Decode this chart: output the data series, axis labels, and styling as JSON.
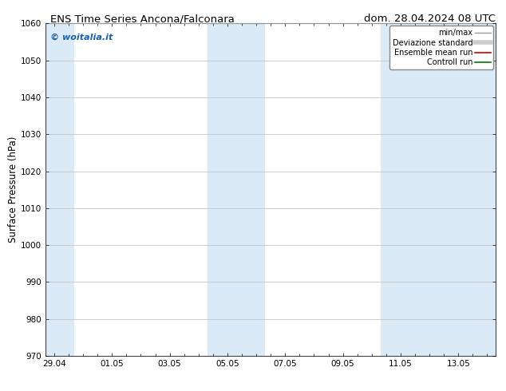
{
  "title_left": "ENS Time Series Ancona/Falconara",
  "title_right": "dom. 28.04.2024 08 UTC",
  "ylabel": "Surface Pressure (hPa)",
  "ylim": [
    970,
    1060
  ],
  "yticks": [
    970,
    980,
    990,
    1000,
    1010,
    1020,
    1030,
    1040,
    1050,
    1060
  ],
  "xtick_labels": [
    "29.04",
    "01.05",
    "03.05",
    "05.05",
    "07.05",
    "09.05",
    "11.05",
    "13.05"
  ],
  "xtick_positions": [
    0,
    2,
    4,
    6,
    8,
    10,
    12,
    14
  ],
  "xlim": [
    -0.3,
    15.3
  ],
  "shaded_bands": [
    {
      "x_start": -0.3,
      "x_end": 0.7,
      "color": "#daeaf7"
    },
    {
      "x_start": 5.3,
      "x_end": 7.3,
      "color": "#daeaf7"
    },
    {
      "x_start": 11.3,
      "x_end": 15.3,
      "color": "#daeaf7"
    }
  ],
  "watermark_text": "© woitalia.it",
  "watermark_color": "#1a5fb4",
  "background_color": "#ffffff",
  "grid_color": "#bbbbbb",
  "title_fontsize": 9.5,
  "label_fontsize": 8.5,
  "tick_fontsize": 7.5,
  "watermark_fontsize": 8,
  "legend_entries": [
    {
      "label": "min/max",
      "color": "#999999",
      "linewidth": 1.0
    },
    {
      "label": "Deviazione standard",
      "color": "#cccccc",
      "linewidth": 4.0
    },
    {
      "label": "Ensemble mean run",
      "color": "#cc0000",
      "linewidth": 1.2
    },
    {
      "label": "Controll run",
      "color": "#007700",
      "linewidth": 1.2
    }
  ]
}
